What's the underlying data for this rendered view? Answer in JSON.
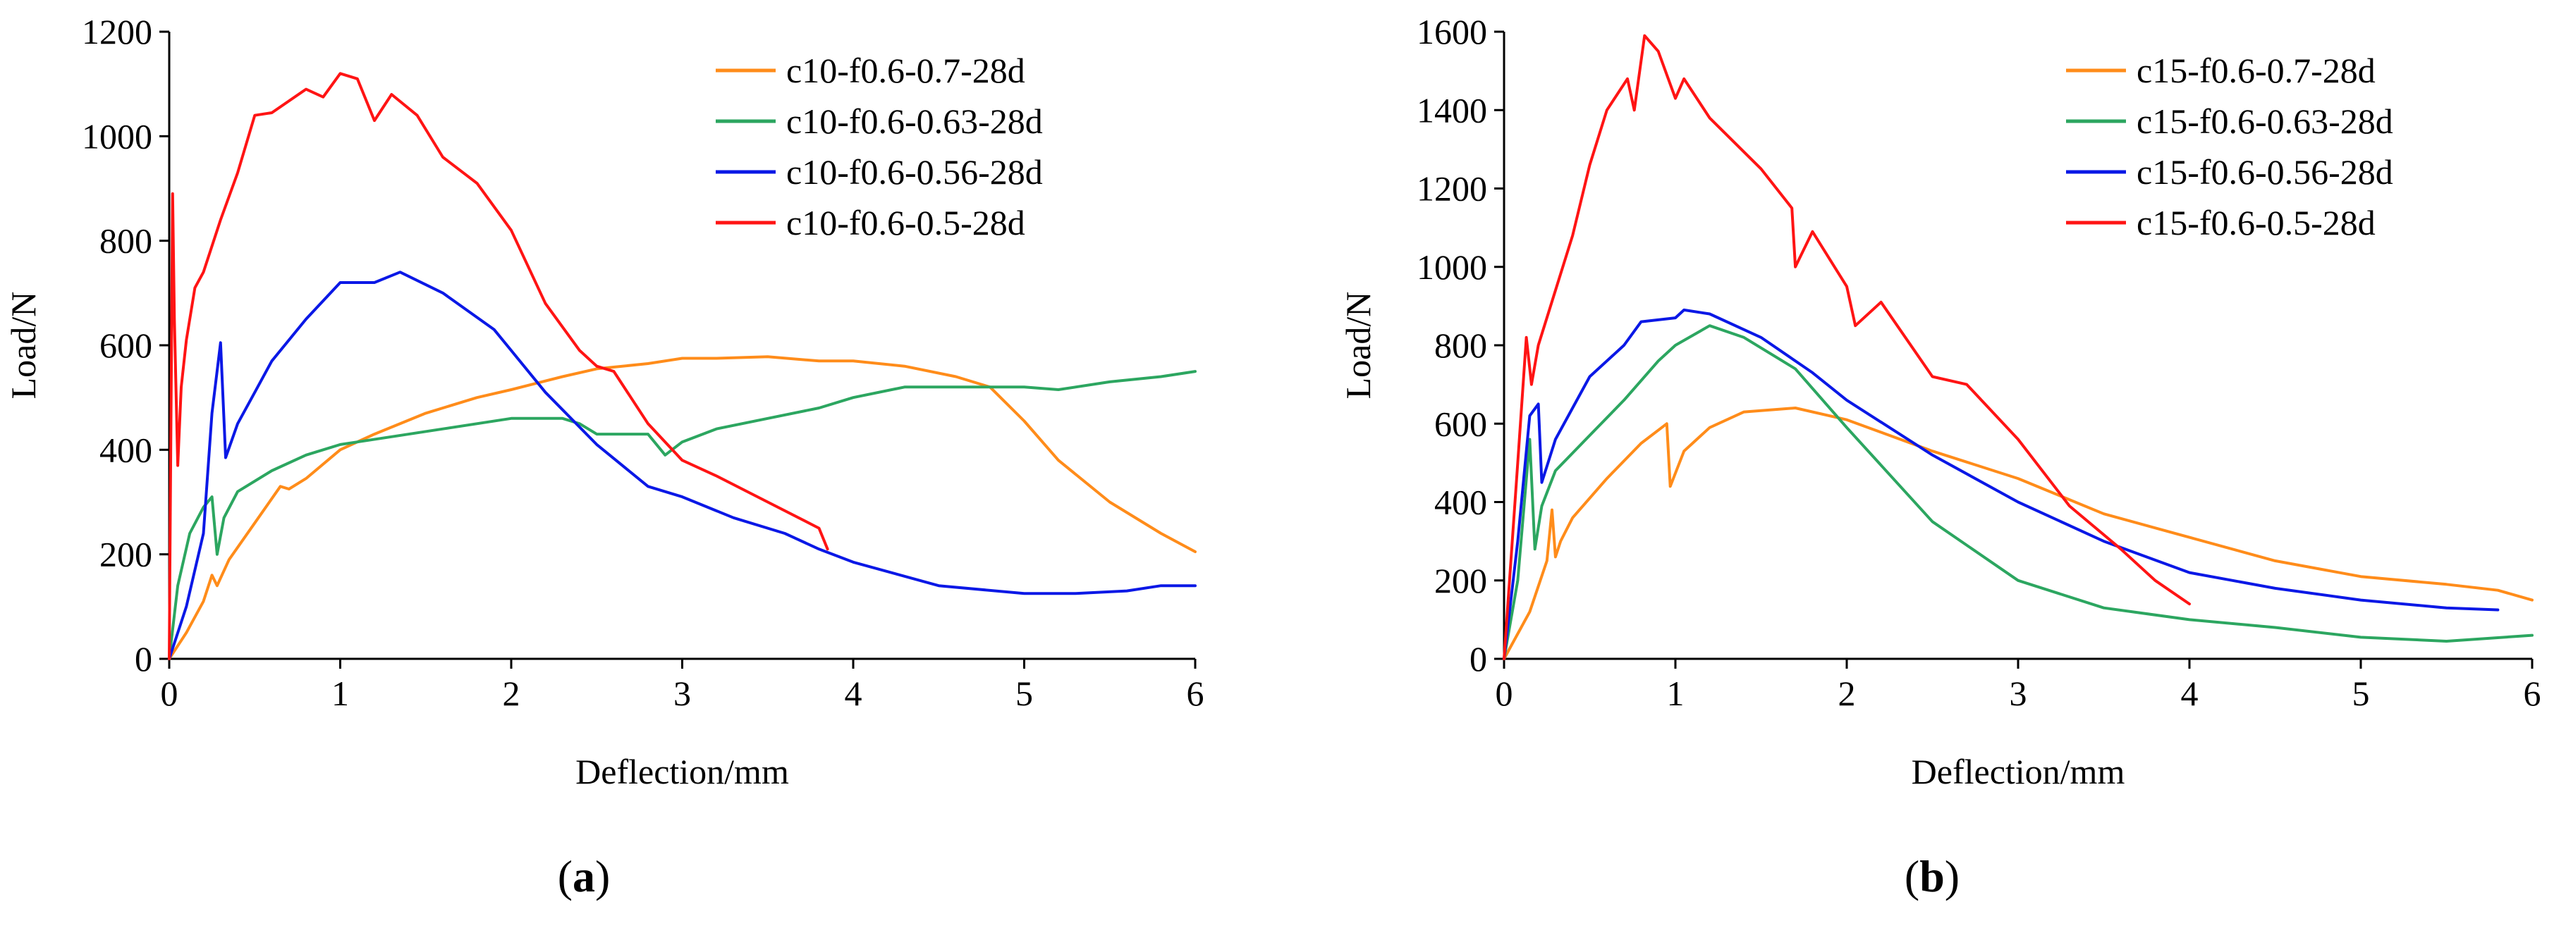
{
  "chart_data": [
    {
      "type": "line",
      "panel_label": "a",
      "xlabel": "Deflection/mm",
      "ylabel": "Load/N",
      "xlim": [
        0,
        6
      ],
      "ylim": [
        0,
        1200
      ],
      "xticks": [
        0,
        1,
        2,
        3,
        4,
        5,
        6
      ],
      "yticks": [
        0,
        200,
        400,
        600,
        800,
        1000,
        1200
      ],
      "grid": false,
      "legend_position": "top-right",
      "series": [
        {
          "name": "c10-f0.6-0.7-28d",
          "color": "#ff8c1a",
          "x": [
            0,
            0.1,
            0.2,
            0.25,
            0.28,
            0.35,
            0.5,
            0.65,
            0.7,
            0.8,
            1.0,
            1.2,
            1.5,
            1.8,
            2.0,
            2.3,
            2.5,
            2.8,
            3.0,
            3.2,
            3.5,
            3.8,
            4.0,
            4.3,
            4.6,
            4.8,
            5.0,
            5.2,
            5.5,
            5.8,
            6.0
          ],
          "y": [
            0,
            50,
            110,
            160,
            140,
            190,
            260,
            330,
            325,
            345,
            400,
            430,
            470,
            500,
            515,
            540,
            555,
            565,
            575,
            575,
            578,
            570,
            570,
            560,
            540,
            520,
            455,
            380,
            300,
            240,
            205
          ]
        },
        {
          "name": "c10-f0.6-0.63-28d",
          "color": "#2ca660",
          "x": [
            0,
            0.05,
            0.12,
            0.2,
            0.25,
            0.28,
            0.32,
            0.4,
            0.6,
            0.8,
            1.0,
            1.3,
            1.6,
            2.0,
            2.3,
            2.4,
            2.5,
            2.7,
            2.8,
            2.9,
            3.0,
            3.2,
            3.5,
            3.8,
            4.0,
            4.3,
            4.6,
            5.0,
            5.2,
            5.5,
            5.8,
            6.0
          ],
          "y": [
            0,
            140,
            240,
            290,
            310,
            200,
            270,
            320,
            360,
            390,
            410,
            425,
            440,
            460,
            460,
            450,
            430,
            430,
            430,
            390,
            415,
            440,
            460,
            480,
            500,
            520,
            520,
            520,
            515,
            530,
            540,
            550
          ]
        },
        {
          "name": "c10-f0.6-0.56-28d",
          "color": "#0a18e6",
          "x": [
            0,
            0.1,
            0.2,
            0.25,
            0.3,
            0.33,
            0.4,
            0.5,
            0.6,
            0.8,
            1.0,
            1.2,
            1.35,
            1.6,
            1.9,
            2.0,
            2.2,
            2.5,
            2.8,
            3.0,
            3.3,
            3.6,
            3.8,
            4.0,
            4.5,
            5.0,
            5.3,
            5.6,
            5.8,
            6.0
          ],
          "y": [
            0,
            100,
            240,
            470,
            605,
            385,
            450,
            510,
            570,
            650,
            720,
            720,
            740,
            700,
            630,
            590,
            510,
            410,
            330,
            310,
            270,
            240,
            210,
            185,
            140,
            125,
            125,
            130,
            140,
            140
          ]
        },
        {
          "name": "c10-f0.6-0.5-28d",
          "color": "#ff1414",
          "x": [
            0,
            0.02,
            0.03,
            0.05,
            0.07,
            0.1,
            0.15,
            0.2,
            0.3,
            0.4,
            0.5,
            0.6,
            0.8,
            0.9,
            1.0,
            1.1,
            1.2,
            1.3,
            1.45,
            1.6,
            1.8,
            2.0,
            2.2,
            2.4,
            2.5,
            2.6,
            2.8,
            3.0,
            3.2,
            3.5,
            3.8,
            3.85
          ],
          "y": [
            0,
            890,
            650,
            370,
            520,
            610,
            710,
            740,
            840,
            930,
            1040,
            1045,
            1090,
            1075,
            1120,
            1110,
            1030,
            1080,
            1040,
            960,
            910,
            820,
            680,
            590,
            560,
            550,
            450,
            380,
            350,
            300,
            250,
            210
          ]
        }
      ]
    },
    {
      "type": "line",
      "panel_label": "b",
      "xlabel": "Deflection/mm",
      "ylabel": "Load/N",
      "xlim": [
        0,
        6
      ],
      "ylim": [
        0,
        1600
      ],
      "xticks": [
        0,
        1,
        2,
        3,
        4,
        5,
        6
      ],
      "yticks": [
        0,
        200,
        400,
        600,
        800,
        1000,
        1200,
        1400,
        1600
      ],
      "grid": false,
      "legend_position": "top-right",
      "series": [
        {
          "name": "c15-f0.6-0.7-28d",
          "color": "#ff8c1a",
          "x": [
            0,
            0.15,
            0.25,
            0.28,
            0.3,
            0.33,
            0.4,
            0.6,
            0.8,
            0.95,
            0.97,
            1.05,
            1.2,
            1.4,
            1.7,
            2.0,
            2.5,
            3.0,
            3.5,
            4.0,
            4.5,
            5.0,
            5.5,
            5.8,
            6.0
          ],
          "y": [
            0,
            120,
            250,
            380,
            260,
            300,
            360,
            460,
            550,
            600,
            440,
            530,
            590,
            630,
            640,
            610,
            530,
            460,
            370,
            310,
            250,
            210,
            190,
            175,
            150
          ]
        },
        {
          "name": "c15-f0.6-0.63-28d",
          "color": "#2ca660",
          "x": [
            0,
            0.08,
            0.15,
            0.18,
            0.22,
            0.3,
            0.5,
            0.7,
            0.9,
            1.0,
            1.2,
            1.4,
            1.7,
            2.0,
            2.5,
            3.0,
            3.5,
            4.0,
            4.5,
            5.0,
            5.5,
            6.0
          ],
          "y": [
            0,
            200,
            560,
            280,
            390,
            480,
            570,
            660,
            760,
            800,
            850,
            820,
            740,
            590,
            350,
            200,
            130,
            100,
            80,
            55,
            45,
            60
          ]
        },
        {
          "name": "c15-f0.6-0.56-28d",
          "color": "#0a18e6",
          "x": [
            0,
            0.08,
            0.15,
            0.2,
            0.22,
            0.3,
            0.5,
            0.7,
            0.8,
            1.0,
            1.05,
            1.2,
            1.5,
            1.8,
            2.0,
            2.5,
            3.0,
            3.5,
            4.0,
            4.5,
            5.0,
            5.5,
            5.8
          ],
          "y": [
            0,
            300,
            620,
            650,
            450,
            560,
            720,
            800,
            860,
            870,
            890,
            880,
            820,
            730,
            660,
            520,
            400,
            300,
            220,
            180,
            150,
            130,
            125
          ]
        },
        {
          "name": "c15-f0.6-0.5-28d",
          "color": "#ff1414",
          "x": [
            0,
            0.08,
            0.13,
            0.16,
            0.2,
            0.3,
            0.4,
            0.5,
            0.6,
            0.72,
            0.76,
            0.82,
            0.9,
            1.0,
            1.05,
            1.2,
            1.5,
            1.68,
            1.7,
            1.8,
            2.0,
            2.05,
            2.2,
            2.5,
            2.7,
            3.0,
            3.3,
            3.6,
            3.8,
            4.0
          ],
          "y": [
            0,
            500,
            820,
            700,
            800,
            940,
            1080,
            1260,
            1400,
            1480,
            1400,
            1590,
            1550,
            1430,
            1480,
            1380,
            1250,
            1150,
            1000,
            1090,
            950,
            850,
            910,
            720,
            700,
            560,
            390,
            280,
            200,
            140
          ]
        }
      ]
    }
  ]
}
